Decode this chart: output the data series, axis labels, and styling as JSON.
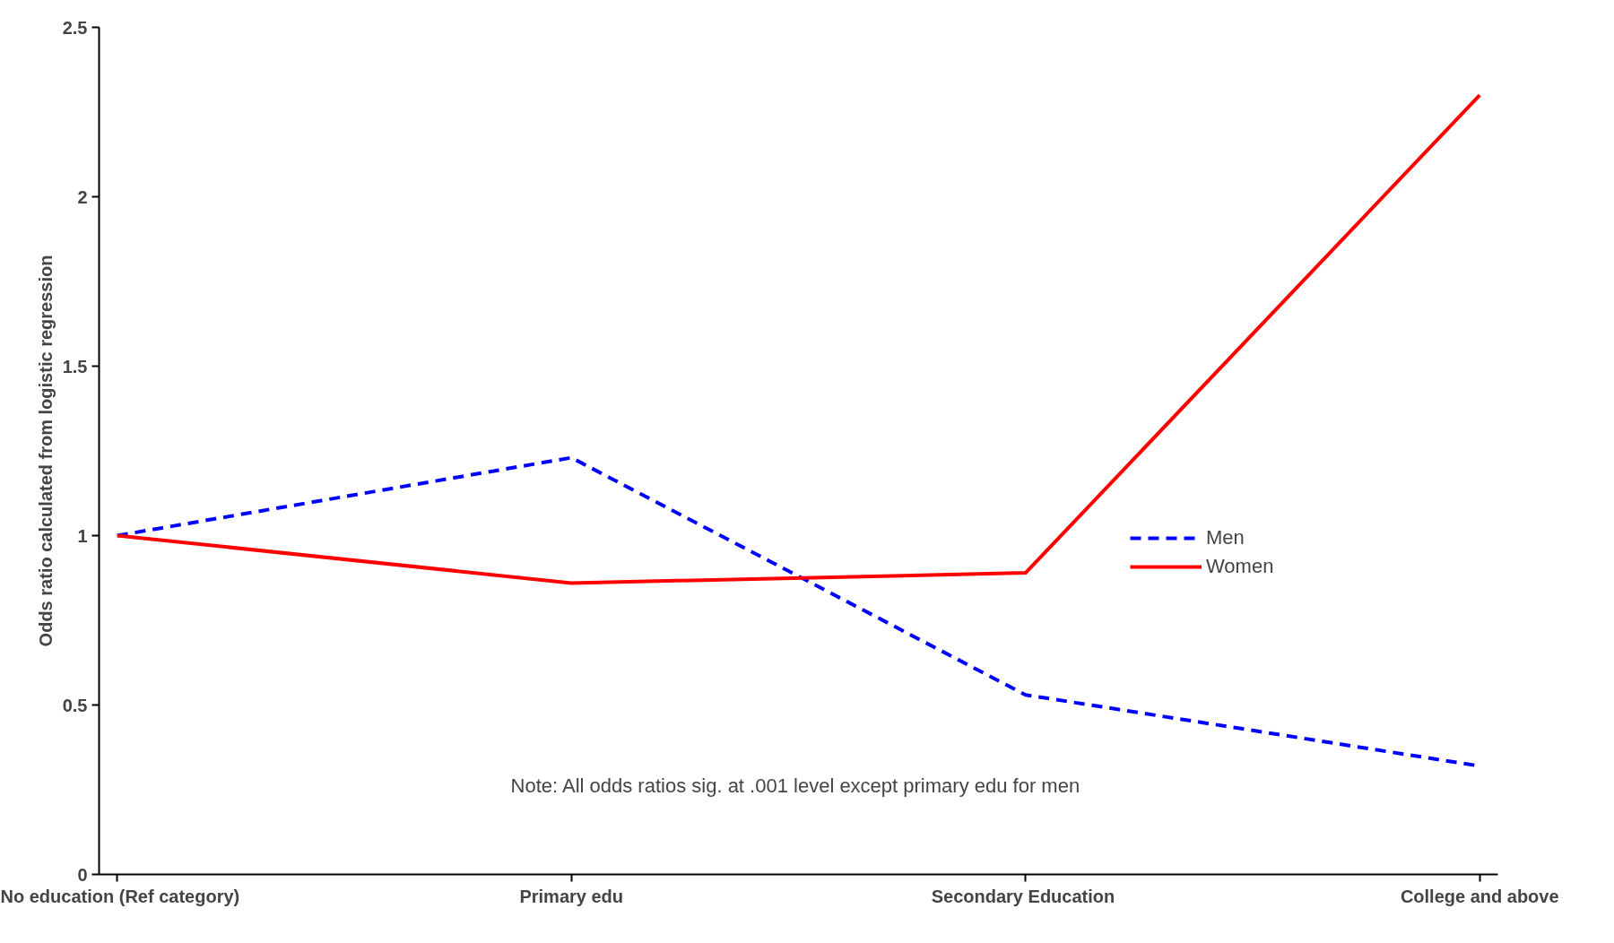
{
  "chart_data": {
    "type": "line",
    "ylabel": "Odds ratio calculated from logistic regression",
    "categories": [
      "No education (Ref category)",
      "Primary edu",
      "Secondary  Education",
      "College and above"
    ],
    "series": [
      {
        "name": "Men",
        "color": "#0000ff",
        "values": [
          1,
          1.23,
          0.53,
          0.32
        ],
        "line_style": "dashed"
      },
      {
        "name": "Women",
        "color": "#ff0000",
        "values": [
          1,
          0.86,
          0.89,
          2.3
        ],
        "line_style": "solid"
      }
    ],
    "ylim": [
      0,
      2.5
    ],
    "yticks": [
      0,
      0.5,
      1,
      1.5,
      2,
      2.5
    ],
    "grid": false,
    "legend": "right",
    "marker": "none",
    "annotations": [
      "Note:  All odds ratios sig. at .001 level except primary edu for men"
    ]
  }
}
